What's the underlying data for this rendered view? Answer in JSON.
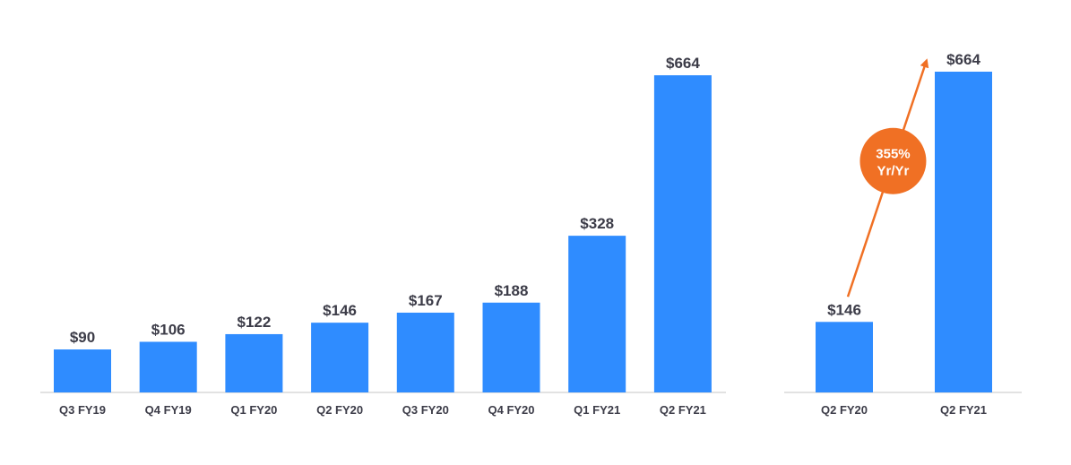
{
  "chart_data": [
    {
      "type": "bar",
      "categories": [
        "Q3 FY19",
        "Q4 FY19",
        "Q1 FY20",
        "Q2 FY20",
        "Q3 FY20",
        "Q4 FY20",
        "Q1 FY21",
        "Q2 FY21"
      ],
      "values": [
        90,
        106,
        122,
        146,
        167,
        188,
        328,
        664
      ],
      "value_labels": [
        "$90",
        "$106",
        "$122",
        "$146",
        "$167",
        "$188",
        "$328",
        "$664"
      ],
      "ylim": [
        0,
        700
      ],
      "grid": false
    },
    {
      "type": "bar",
      "categories": [
        "Q2 FY20",
        "Q2 FY21"
      ],
      "values": [
        146,
        664
      ],
      "value_labels": [
        "$146",
        "$664"
      ],
      "ylim": [
        0,
        700
      ],
      "grid": false,
      "annotation": {
        "line1": "355%",
        "line2": "Yr/Yr"
      }
    }
  ],
  "colors": {
    "bar": "#2f8cff",
    "axis": "#d9d9d9",
    "text": "#3c3c48",
    "accent": "#f07024"
  }
}
